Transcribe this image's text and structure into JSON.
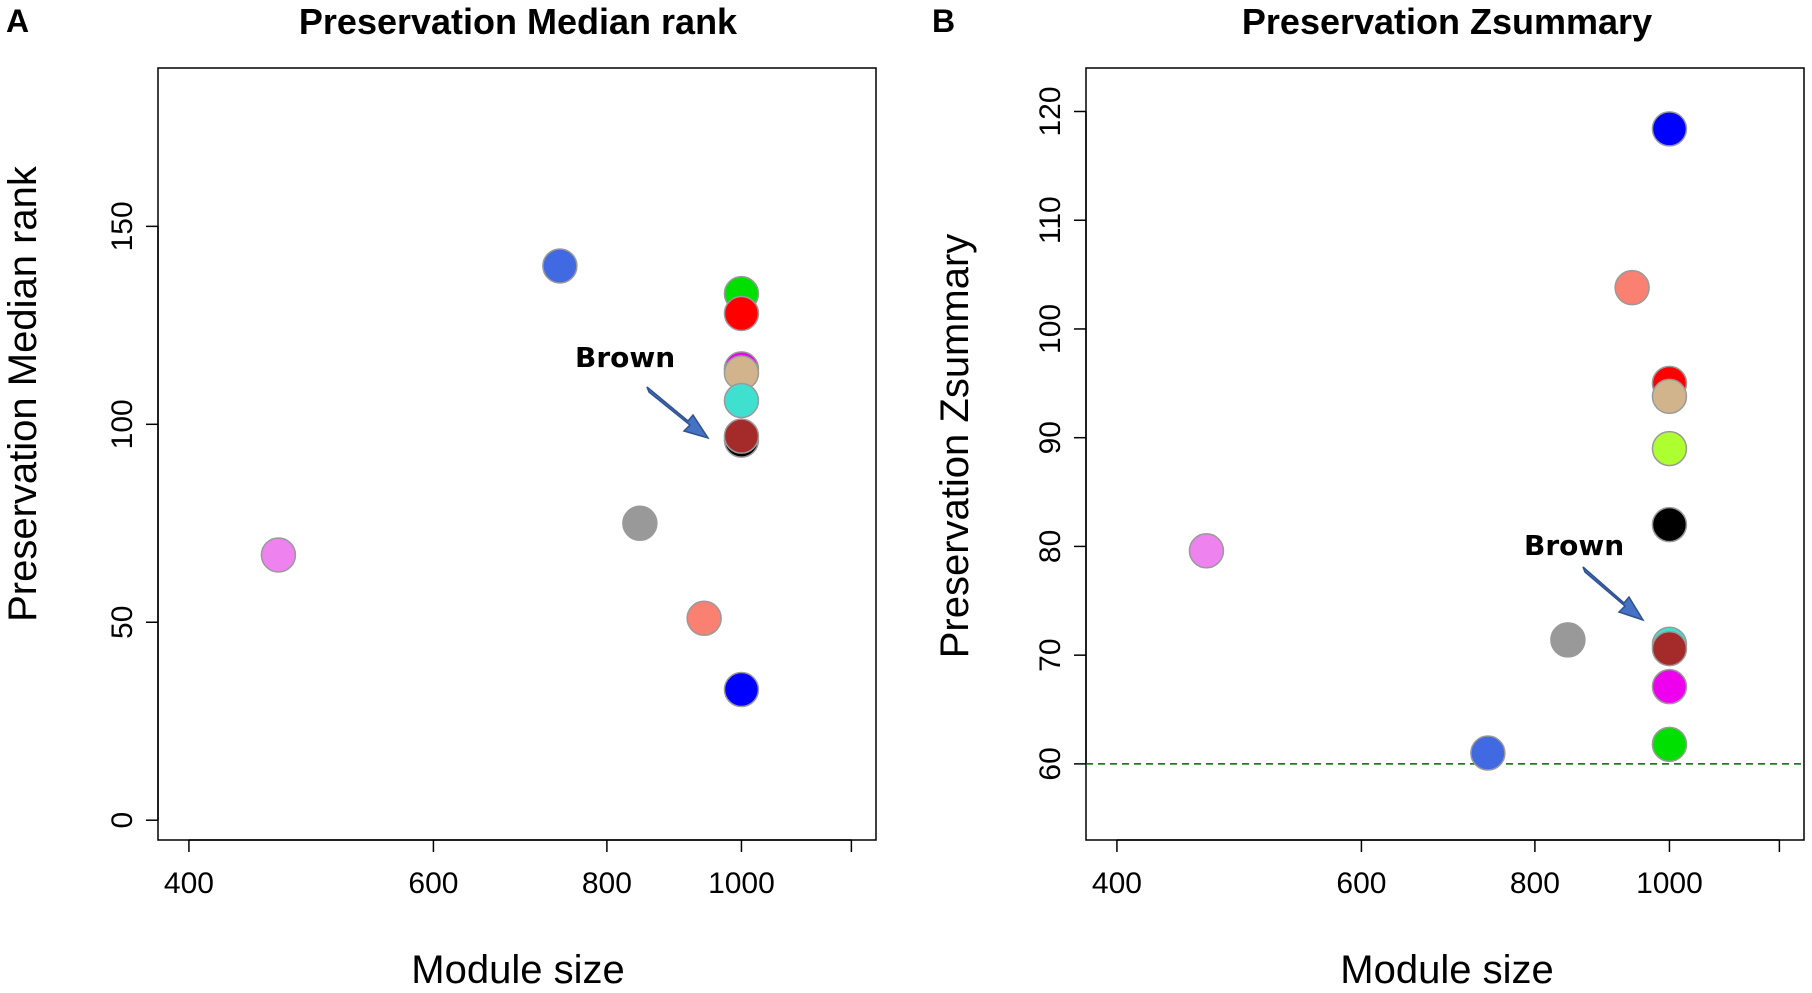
{
  "chart_data": [
    {
      "type": "scatter",
      "panel_letter": "A",
      "title": "Preservation Median rank",
      "xlabel": "Module size",
      "ylabel": "Preservation Median rank",
      "x_scale": "log",
      "xlim": [
        380,
        1250
      ],
      "ylim": [
        -5,
        190
      ],
      "x_ticks": [
        400,
        600,
        800,
        1000
      ],
      "x_minor_ticks": [
        1200
      ],
      "y_ticks": [
        0,
        50,
        100,
        150
      ],
      "threshold": null,
      "annotation": {
        "text": "Brown",
        "target_x": 1000,
        "target_y": 97
      },
      "points": [
        {
          "module": "violet",
          "color": "#EE82EE",
          "x": 464,
          "y": 67
        },
        {
          "module": "royalblue",
          "color": "#4169E1",
          "x": 740,
          "y": 140
        },
        {
          "module": "grey",
          "color": "#999999",
          "x": 845,
          "y": 75
        },
        {
          "module": "salmon",
          "color": "#FA8072",
          "x": 940,
          "y": 51
        },
        {
          "module": "green",
          "color": "#00E000",
          "x": 1000,
          "y": 133
        },
        {
          "module": "red",
          "color": "#FF0000",
          "x": 1000,
          "y": 128
        },
        {
          "module": "magenta",
          "color": "#EE00EE",
          "x": 1000,
          "y": 114
        },
        {
          "module": "tan",
          "color": "#D2B48C",
          "x": 1000,
          "y": 113
        },
        {
          "module": "turquoise",
          "color": "#40E0D0",
          "x": 1000,
          "y": 106
        },
        {
          "module": "black",
          "color": "#000000",
          "x": 1000,
          "y": 96
        },
        {
          "module": "brown",
          "color": "#A52A2A",
          "x": 1000,
          "y": 97
        },
        {
          "module": "blue",
          "color": "#0000FF",
          "x": 1000,
          "y": 33
        }
      ]
    },
    {
      "type": "scatter",
      "panel_letter": "B",
      "title": "Preservation Zsummary",
      "xlabel": "Module size",
      "ylabel": "Preservation Zsummary",
      "x_scale": "log",
      "xlim": [
        380,
        1250
      ],
      "ylim": [
        53,
        124
      ],
      "x_ticks": [
        400,
        600,
        800,
        1000
      ],
      "x_minor_ticks": [
        1200
      ],
      "y_ticks": [
        60,
        70,
        80,
        90,
        100,
        110,
        120
      ],
      "threshold": {
        "y": 60,
        "color": "#006400",
        "style": "dashed"
      },
      "annotation": {
        "text": "Brown",
        "target_x": 1000,
        "target_y": 71.5
      },
      "points": [
        {
          "module": "violet",
          "color": "#EE82EE",
          "x": 464,
          "y": 79.6
        },
        {
          "module": "royalblue",
          "color": "#4169E1",
          "x": 740,
          "y": 61
        },
        {
          "module": "grey",
          "color": "#999999",
          "x": 845,
          "y": 71.4
        },
        {
          "module": "salmon",
          "color": "#FA8072",
          "x": 940,
          "y": 103.8
        },
        {
          "module": "blue",
          "color": "#0000FF",
          "x": 1000,
          "y": 118.4
        },
        {
          "module": "red",
          "color": "#FF0000",
          "x": 1000,
          "y": 95
        },
        {
          "module": "tan",
          "color": "#D2B48C",
          "x": 1000,
          "y": 93.8
        },
        {
          "module": "greenyellow",
          "color": "#ADFF2F",
          "x": 1000,
          "y": 89
        },
        {
          "module": "black",
          "color": "#000000",
          "x": 1000,
          "y": 82
        },
        {
          "module": "turquoise",
          "color": "#40E0D0",
          "x": 1000,
          "y": 71
        },
        {
          "module": "brown",
          "color": "#A52A2A",
          "x": 1000,
          "y": 70.6
        },
        {
          "module": "magenta",
          "color": "#EE00EE",
          "x": 1000,
          "y": 67.1
        },
        {
          "module": "green",
          "color": "#00E000",
          "x": 1000,
          "y": 61.8
        }
      ]
    }
  ]
}
